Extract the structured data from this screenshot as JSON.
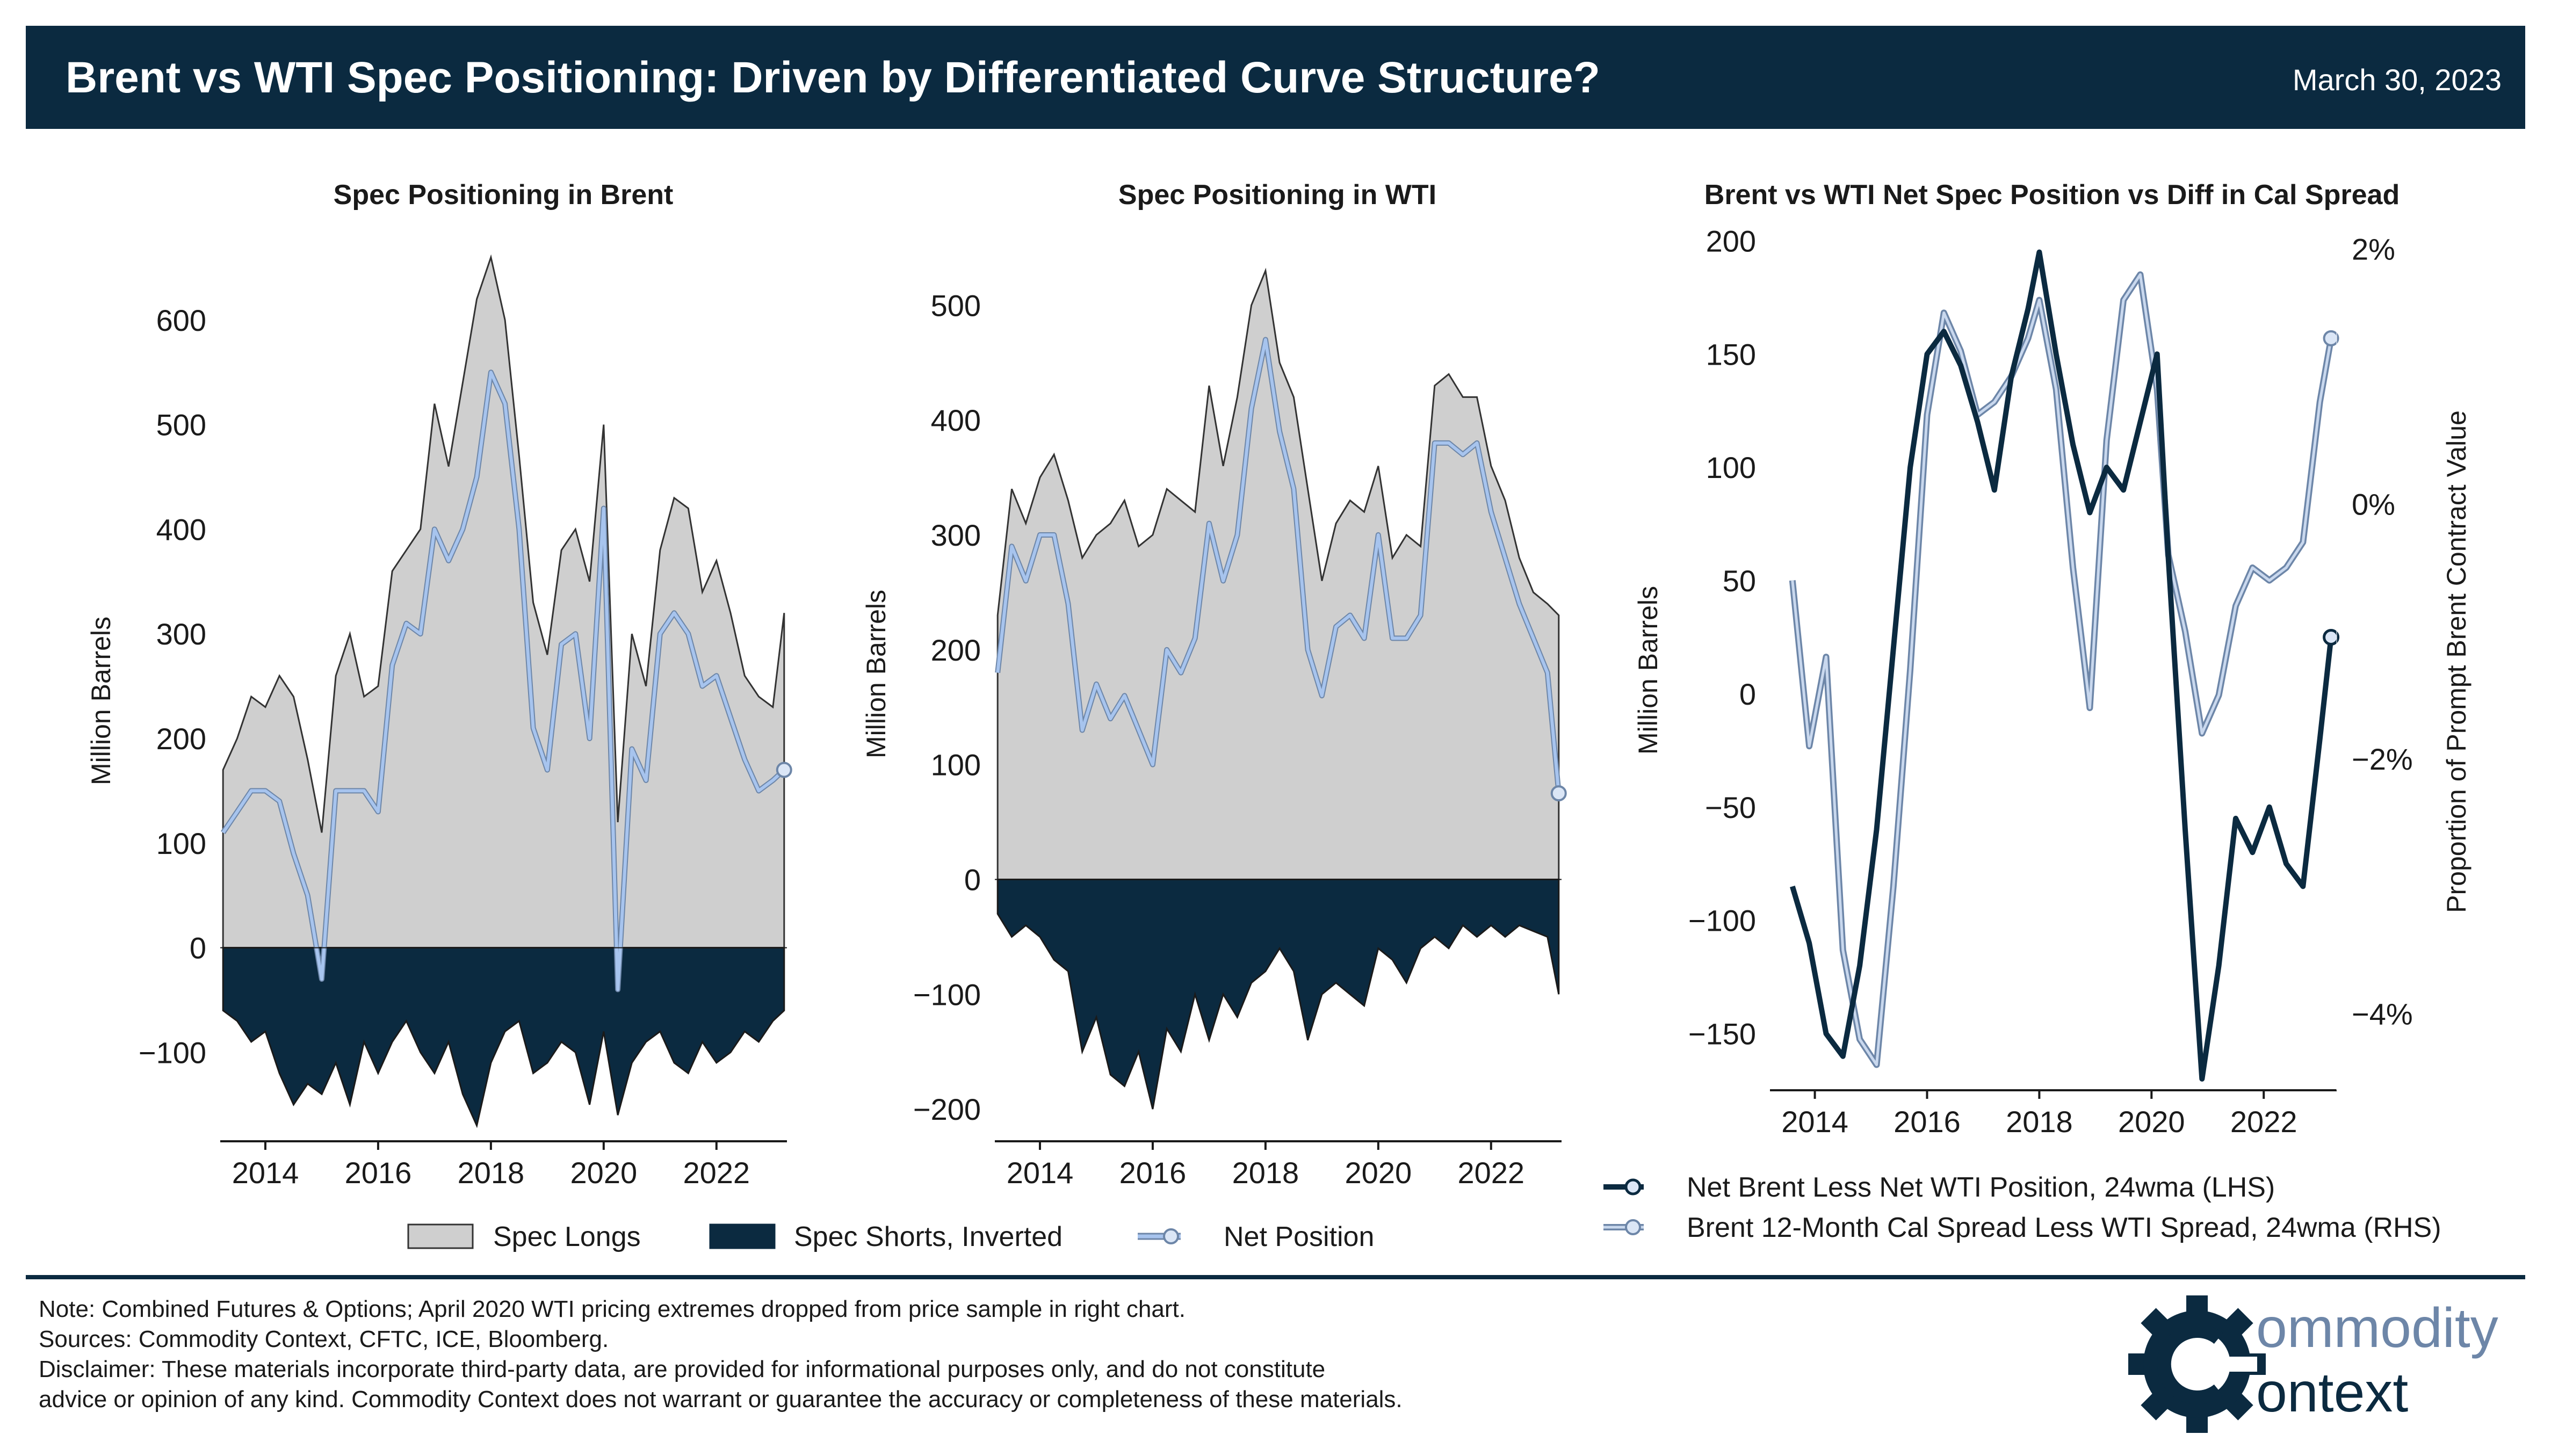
{
  "header": {
    "title": "Brent vs WTI Spec Positioning: Driven by Differentiated Curve Structure?",
    "date": "March 30, 2023"
  },
  "colors": {
    "navy": "#0b2a40",
    "longs_fill": "#cfcfcf",
    "net_line": "#a7c4ee",
    "net_line_edge": "#6d86a8",
    "cal_spread_line": "#6d86a8",
    "raw_spread_line": "#b7cbe2"
  },
  "legend_left": [
    {
      "label": "Spec Longs",
      "icon": "gray-fill-swatch"
    },
    {
      "label": "Spec Shorts, Inverted",
      "icon": "navy-fill-swatch"
    },
    {
      "label": "Net Position",
      "icon": "blue-line-circle-marker"
    }
  ],
  "legend_right": [
    {
      "label": "Net Brent Less Net WTI Position, 24wma (LHS)",
      "icon": "navy-line-circle-marker"
    },
    {
      "label": "Brent 12-Month Cal Spread Less WTI Spread, 24wma (RHS)",
      "icon": "blue-line-circle-marker"
    }
  ],
  "notes": [
    "Note: Combined Futures & Options; April 2020 WTI pricing extremes dropped from price sample in right chart.",
    "Sources: Commodity Context, CFTC, ICE, Bloomberg.",
    "Disclaimer: These materials incorporate third-party data, are provided for informational purposes only, and do not constitute",
    "advice or opinion of any kind. Commodity Context does not warrant or guarantee the accuracy or completeness of these materials."
  ],
  "logo": {
    "line1": "ommodity",
    "line2": "ontext"
  },
  "chart_data": [
    {
      "type": "area",
      "title": "Spec Positioning in Brent",
      "ylabel": "Million Barrels",
      "xlim": [
        2013.2,
        2023.25
      ],
      "ylim": [
        -185,
        680
      ],
      "yticks": [
        -100,
        0,
        100,
        200,
        300,
        400,
        500,
        600
      ],
      "ytick_labels": [
        "−100",
        "0",
        "100",
        "200",
        "300",
        "400",
        "500",
        "600"
      ],
      "xticks": [
        2014,
        2016,
        2018,
        2020,
        2022
      ],
      "xtick_labels": [
        "2014",
        "2016",
        "2018",
        "2020",
        "2022"
      ],
      "series": [
        {
          "name": "Spec Longs",
          "x": [
            2013.25,
            2013.5,
            2013.75,
            2014.0,
            2014.25,
            2014.5,
            2014.75,
            2015.0,
            2015.25,
            2015.5,
            2015.75,
            2016.0,
            2016.25,
            2016.5,
            2016.75,
            2017.0,
            2017.25,
            2017.5,
            2017.75,
            2018.0,
            2018.25,
            2018.5,
            2018.75,
            2019.0,
            2019.25,
            2019.5,
            2019.75,
            2020.0,
            2020.25,
            2020.5,
            2020.75,
            2021.0,
            2021.25,
            2021.5,
            2021.75,
            2022.0,
            2022.25,
            2022.5,
            2022.75,
            2023.0,
            2023.2
          ],
          "values": [
            170,
            200,
            240,
            230,
            260,
            240,
            180,
            110,
            260,
            300,
            240,
            250,
            360,
            380,
            400,
            520,
            460,
            540,
            620,
            660,
            600,
            470,
            330,
            280,
            380,
            400,
            350,
            500,
            120,
            300,
            250,
            380,
            430,
            420,
            340,
            370,
            320,
            260,
            240,
            230,
            320
          ]
        },
        {
          "name": "Spec Shorts, Inverted",
          "x": [
            2013.25,
            2013.5,
            2013.75,
            2014.0,
            2014.25,
            2014.5,
            2014.75,
            2015.0,
            2015.25,
            2015.5,
            2015.75,
            2016.0,
            2016.25,
            2016.5,
            2016.75,
            2017.0,
            2017.25,
            2017.5,
            2017.75,
            2018.0,
            2018.25,
            2018.5,
            2018.75,
            2019.0,
            2019.25,
            2019.5,
            2019.75,
            2020.0,
            2020.25,
            2020.5,
            2020.75,
            2021.0,
            2021.25,
            2021.5,
            2021.75,
            2022.0,
            2022.25,
            2022.5,
            2022.75,
            2023.0,
            2023.2
          ],
          "values": [
            -60,
            -70,
            -90,
            -80,
            -120,
            -150,
            -130,
            -140,
            -110,
            -150,
            -90,
            -120,
            -90,
            -70,
            -100,
            -120,
            -90,
            -140,
            -170,
            -110,
            -80,
            -70,
            -120,
            -110,
            -90,
            -100,
            -150,
            -80,
            -160,
            -110,
            -90,
            -80,
            -110,
            -120,
            -90,
            -110,
            -100,
            -80,
            -90,
            -70,
            -60
          ]
        },
        {
          "name": "Net Position",
          "x": [
            2013.25,
            2013.5,
            2013.75,
            2014.0,
            2014.25,
            2014.5,
            2014.75,
            2015.0,
            2015.25,
            2015.5,
            2015.75,
            2016.0,
            2016.25,
            2016.5,
            2016.75,
            2017.0,
            2017.25,
            2017.5,
            2017.75,
            2018.0,
            2018.25,
            2018.5,
            2018.75,
            2019.0,
            2019.25,
            2019.5,
            2019.75,
            2020.0,
            2020.25,
            2020.5,
            2020.75,
            2021.0,
            2021.25,
            2021.5,
            2021.75,
            2022.0,
            2022.25,
            2022.5,
            2022.75,
            2023.0,
            2023.2
          ],
          "values": [
            110,
            130,
            150,
            150,
            140,
            90,
            50,
            -30,
            150,
            150,
            150,
            130,
            270,
            310,
            300,
            400,
            370,
            400,
            450,
            550,
            520,
            400,
            210,
            170,
            290,
            300,
            200,
            420,
            -40,
            190,
            160,
            300,
            320,
            300,
            250,
            260,
            220,
            180,
            150,
            160,
            170
          ]
        }
      ]
    },
    {
      "type": "area",
      "title": "Spec Positioning in WTI",
      "ylabel": "Million Barrels",
      "xlim": [
        2013.2,
        2023.25
      ],
      "ylim": [
        -228,
        560
      ],
      "yticks": [
        -200,
        -100,
        0,
        100,
        200,
        300,
        400,
        500
      ],
      "ytick_labels": [
        "−200",
        "−100",
        "0",
        "100",
        "200",
        "300",
        "400",
        "500"
      ],
      "xticks": [
        2014,
        2016,
        2018,
        2020,
        2022
      ],
      "xtick_labels": [
        "2014",
        "2016",
        "2018",
        "2020",
        "2022"
      ],
      "series": [
        {
          "name": "Spec Longs",
          "x": [
            2013.25,
            2013.5,
            2013.75,
            2014.0,
            2014.25,
            2014.5,
            2014.75,
            2015.0,
            2015.25,
            2015.5,
            2015.75,
            2016.0,
            2016.25,
            2016.5,
            2016.75,
            2017.0,
            2017.25,
            2017.5,
            2017.75,
            2018.0,
            2018.25,
            2018.5,
            2018.75,
            2019.0,
            2019.25,
            2019.5,
            2019.75,
            2020.0,
            2020.25,
            2020.5,
            2020.75,
            2021.0,
            2021.25,
            2021.5,
            2021.75,
            2022.0,
            2022.25,
            2022.5,
            2022.75,
            2023.0,
            2023.2
          ],
          "values": [
            230,
            340,
            310,
            350,
            370,
            330,
            280,
            300,
            310,
            330,
            290,
            300,
            340,
            330,
            320,
            430,
            360,
            420,
            500,
            530,
            450,
            420,
            340,
            260,
            310,
            330,
            320,
            360,
            280,
            300,
            290,
            430,
            440,
            420,
            420,
            360,
            330,
            280,
            250,
            240,
            230
          ]
        },
        {
          "name": "Spec Shorts, Inverted",
          "x": [
            2013.25,
            2013.5,
            2013.75,
            2014.0,
            2014.25,
            2014.5,
            2014.75,
            2015.0,
            2015.25,
            2015.5,
            2015.75,
            2016.0,
            2016.25,
            2016.5,
            2016.75,
            2017.0,
            2017.25,
            2017.5,
            2017.75,
            2018.0,
            2018.25,
            2018.5,
            2018.75,
            2019.0,
            2019.25,
            2019.5,
            2019.75,
            2020.0,
            2020.25,
            2020.5,
            2020.75,
            2021.0,
            2021.25,
            2021.5,
            2021.75,
            2022.0,
            2022.25,
            2022.5,
            2022.75,
            2023.0,
            2023.2
          ],
          "values": [
            -30,
            -50,
            -40,
            -50,
            -70,
            -80,
            -150,
            -120,
            -170,
            -180,
            -150,
            -200,
            -130,
            -150,
            -100,
            -140,
            -100,
            -120,
            -90,
            -80,
            -60,
            -80,
            -140,
            -100,
            -90,
            -100,
            -110,
            -60,
            -70,
            -90,
            -60,
            -50,
            -60,
            -40,
            -50,
            -40,
            -50,
            -40,
            -45,
            -50,
            -100
          ]
        },
        {
          "name": "Net Position",
          "x": [
            2013.25,
            2013.5,
            2013.75,
            2014.0,
            2014.25,
            2014.5,
            2014.75,
            2015.0,
            2015.25,
            2015.5,
            2015.75,
            2016.0,
            2016.25,
            2016.5,
            2016.75,
            2017.0,
            2017.25,
            2017.5,
            2017.75,
            2018.0,
            2018.25,
            2018.5,
            2018.75,
            2019.0,
            2019.25,
            2019.5,
            2019.75,
            2020.0,
            2020.25,
            2020.5,
            2020.75,
            2021.0,
            2021.25,
            2021.5,
            2021.75,
            2022.0,
            2022.25,
            2022.5,
            2022.75,
            2023.0,
            2023.2
          ],
          "values": [
            180,
            290,
            260,
            300,
            300,
            240,
            130,
            170,
            140,
            160,
            130,
            100,
            200,
            180,
            210,
            310,
            260,
            300,
            410,
            470,
            390,
            340,
            200,
            160,
            220,
            230,
            210,
            300,
            210,
            210,
            230,
            380,
            380,
            370,
            380,
            320,
            280,
            240,
            210,
            180,
            75
          ]
        }
      ]
    },
    {
      "type": "line",
      "title": "Brent vs WTI Net Spec Position vs Diff in Cal Spread",
      "ylabel": "Million Barrels",
      "y2label": "Proportion of Prompt Brent Contract Value",
      "xlim": [
        2013.2,
        2023.3
      ],
      "ylim": [
        -175,
        202
      ],
      "y2lim": [
        -4.6,
        2.1
      ],
      "yticks": [
        -150,
        -100,
        -50,
        0,
        50,
        100,
        150,
        200
      ],
      "ytick_labels": [
        "−150",
        "−100",
        "−50",
        "0",
        "50",
        "100",
        "150",
        "200"
      ],
      "y2ticks": [
        -4,
        -2,
        0,
        2
      ],
      "y2tick_labels": [
        "−4%",
        "−2%",
        "0%",
        "2%"
      ],
      "xticks": [
        2014,
        2016,
        2018,
        2020,
        2022
      ],
      "xtick_labels": [
        "2014",
        "2016",
        "2018",
        "2020",
        "2022"
      ],
      "series": [
        {
          "name": "Net Brent Less Net WTI Position, 24wma (LHS)",
          "axis": "left",
          "x": [
            2013.6,
            2013.9,
            2014.2,
            2014.5,
            2014.8,
            2015.1,
            2015.4,
            2015.7,
            2016.0,
            2016.3,
            2016.6,
            2016.9,
            2017.2,
            2017.5,
            2017.8,
            2018.0,
            2018.3,
            2018.6,
            2018.9,
            2019.2,
            2019.5,
            2019.8,
            2020.1,
            2020.3,
            2020.6,
            2020.9,
            2021.2,
            2021.5,
            2021.8,
            2022.1,
            2022.4,
            2022.7,
            2023.0,
            2023.2
          ],
          "values": [
            -85,
            -110,
            -150,
            -160,
            -120,
            -60,
            20,
            100,
            150,
            160,
            145,
            120,
            90,
            140,
            170,
            195,
            150,
            110,
            80,
            100,
            90,
            120,
            150,
            60,
            -60,
            -170,
            -120,
            -55,
            -70,
            -50,
            -75,
            -85,
            -20,
            25
          ]
        },
        {
          "name": "Brent 12-Month Cal Spread Less WTI Spread, 24wma (RHS)",
          "axis": "right",
          "x": [
            2013.6,
            2013.9,
            2014.2,
            2014.5,
            2014.8,
            2015.1,
            2015.4,
            2015.7,
            2016.0,
            2016.3,
            2016.6,
            2016.9,
            2017.2,
            2017.5,
            2017.8,
            2018.0,
            2018.3,
            2018.6,
            2018.9,
            2019.2,
            2019.5,
            2019.8,
            2020.1,
            2020.3,
            2020.6,
            2020.9,
            2021.2,
            2021.5,
            2021.8,
            2022.1,
            2022.4,
            2022.7,
            2023.0,
            2023.2
          ],
          "values": [
            -0.6,
            -1.9,
            -1.2,
            -3.5,
            -4.2,
            -4.4,
            -3.0,
            -1.3,
            0.7,
            1.5,
            1.2,
            0.7,
            0.8,
            1.0,
            1.3,
            1.6,
            0.9,
            -0.5,
            -1.6,
            0.5,
            1.6,
            1.8,
            0.9,
            -0.4,
            -1.0,
            -1.8,
            -1.5,
            -0.8,
            -0.5,
            -0.6,
            -0.5,
            -0.3,
            0.8,
            1.3
          ]
        }
      ]
    }
  ]
}
